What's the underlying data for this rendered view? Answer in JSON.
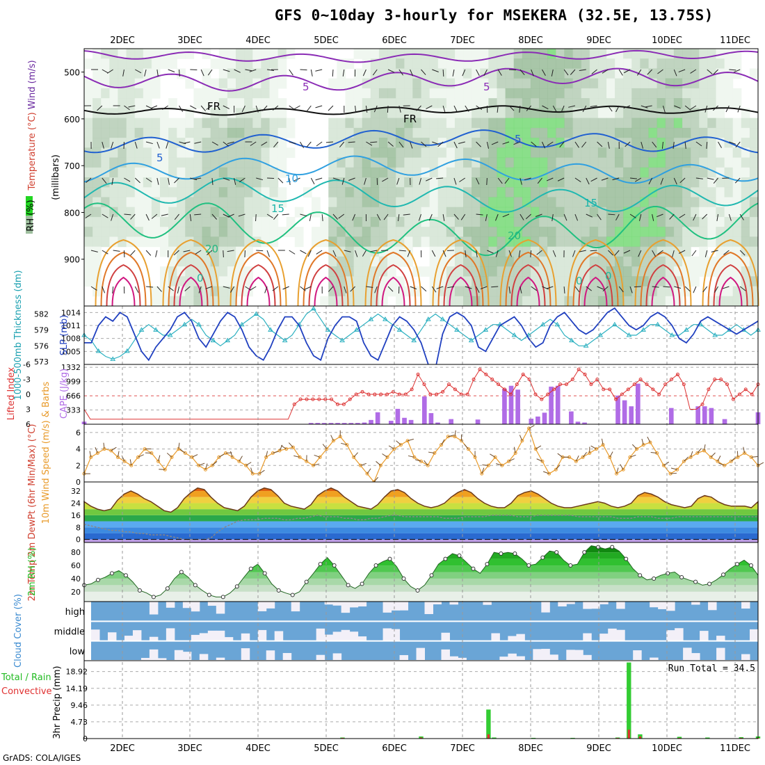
{
  "title": "GFS 0~10day 3-hourly for MSEKERA (32.5E, 13.75S)",
  "credit": "GrADS: COLA/IGES",
  "colors": {
    "temp_contour": "#1ab3a8",
    "wind_contour": "#8a2bb5",
    "rh_green": "#22d622",
    "slp": "#2040c0",
    "thickness": "#2bb0c0",
    "cape": "#b06ce6",
    "lifted": "#dd3333",
    "wind10": "#e89a2a",
    "rh2m": "#22bb22",
    "cloud": "#6aa5d6",
    "cloud_clear": "#f3f0f8",
    "precip_total": "#33cc33",
    "precip_conv": "#e03030"
  },
  "chart_data": [
    {
      "type": "heatmap",
      "panel": "upper_air",
      "ylabel_parts": [
        "RH (%)",
        "Temperature (°C)",
        "Wind (m/s)"
      ],
      "ylabel_units": "(millibars)",
      "y_ticks": [
        500,
        600,
        700,
        800,
        900
      ],
      "ylim": [
        1000,
        450
      ],
      "contour_labels": [
        "5",
        "5",
        "FR",
        "FR",
        "5",
        "5",
        "10",
        "15",
        "15",
        "20",
        "20",
        "0",
        "0",
        "0"
      ],
      "x_dates": [
        "2DEC",
        "3DEC",
        "4DEC",
        "5DEC",
        "6DEC",
        "7DEC",
        "8DEC",
        "9DEC",
        "10DEC",
        "11DEC"
      ]
    },
    {
      "type": "line",
      "panel": "slp_thickness",
      "ylabel": "SLP (mb)",
      "ylabel2": "1000-500mb Thickness (dm)",
      "slp_ticks": [
        1005,
        1008,
        1011,
        1014
      ],
      "thick_ticks": [
        573,
        576,
        579,
        582
      ],
      "slp_values": [
        1007,
        1007,
        1011,
        1013,
        1012,
        1014,
        1013,
        1009,
        1005,
        1003,
        1006,
        1008,
        1010,
        1013,
        1014,
        1012,
        1008,
        1006,
        1009,
        1012,
        1014,
        1013,
        1010,
        1006,
        1004,
        1003,
        1006,
        1010,
        1013,
        1013,
        1011,
        1007,
        1004,
        1003,
        1008,
        1011,
        1013,
        1013,
        1012,
        1007,
        1004,
        1003,
        1007,
        1011,
        1013,
        1012,
        1010,
        1007,
        1002,
        1001,
        1009,
        1013,
        1014,
        1013,
        1011,
        1006,
        1005,
        1008,
        1011,
        1012,
        1013,
        1011,
        1008,
        1006,
        1007,
        1011,
        1013,
        1014,
        1012,
        1010,
        1009,
        1010,
        1012,
        1014,
        1015,
        1013,
        1011,
        1010,
        1011,
        1013,
        1014,
        1013,
        1011,
        1008,
        1007,
        1009,
        1012,
        1013,
        1012,
        1011,
        1010,
        1009,
        1010,
        1011,
        1012
      ],
      "thick_values": [
        578,
        577,
        575,
        574,
        573.5,
        574,
        575,
        577,
        579,
        580,
        579,
        578,
        578,
        579,
        580,
        581,
        580,
        578,
        577,
        576,
        577,
        578,
        580,
        581,
        582,
        581,
        579,
        578,
        577,
        578,
        580,
        582,
        583,
        581,
        579,
        578,
        577,
        578,
        579,
        580,
        581,
        582,
        581,
        580,
        579,
        578,
        577,
        579,
        581,
        582,
        581,
        580,
        579,
        578,
        577,
        578,
        579,
        580,
        580,
        579,
        578,
        577,
        578,
        579,
        580,
        581,
        580,
        578,
        577,
        576,
        576,
        577,
        578,
        579,
        580,
        579,
        578,
        578,
        579,
        580,
        580,
        579,
        578,
        578,
        579,
        580,
        580,
        579,
        578,
        578,
        579,
        580,
        579,
        578,
        579
      ],
      "slp_ylim": [
        1002,
        1015.5
      ],
      "thick_ylim": [
        572.5,
        583.5
      ]
    },
    {
      "type": "bar",
      "panel": "cape_lifted",
      "ylabel": "CAPE (J/kg)",
      "ylabel2": "Lifted Index",
      "cape_ticks": [
        333,
        666,
        999,
        1332
      ],
      "li_ticks": [
        6,
        3,
        0,
        -3,
        -6
      ],
      "cape_values": [
        60,
        0,
        0,
        0,
        0,
        0,
        0,
        0,
        0,
        0,
        0,
        0,
        0,
        0,
        0,
        0,
        0,
        0,
        0,
        0,
        0,
        0,
        0,
        0,
        0,
        0,
        0,
        0,
        0,
        0,
        0,
        0,
        0,
        0,
        30,
        30,
        30,
        30,
        30,
        30,
        30,
        30,
        40,
        100,
        280,
        0,
        80,
        360,
        150,
        100,
        0,
        650,
        260,
        40,
        0,
        120,
        0,
        0,
        0,
        110,
        0,
        0,
        0,
        830,
        900,
        810,
        0,
        130,
        180,
        270,
        880,
        900,
        0,
        300,
        60,
        40,
        0,
        0,
        0,
        0,
        670,
        560,
        420,
        950,
        0,
        0,
        0,
        0,
        380,
        0,
        0,
        0,
        420,
        420,
        380,
        0,
        120,
        0,
        0,
        0,
        0,
        280
      ],
      "li_values": [
        3,
        5,
        5,
        5,
        5,
        5,
        5,
        5,
        5,
        5,
        5,
        5,
        5,
        5,
        5,
        5,
        5,
        5,
        5,
        5,
        5,
        5,
        5,
        5,
        5,
        5,
        5,
        5,
        5,
        5,
        5,
        5,
        5,
        5,
        2,
        1,
        1,
        1,
        1,
        1,
        1,
        2,
        2,
        1,
        0,
        -0.5,
        0,
        0,
        0,
        0,
        -0.5,
        0,
        0,
        -1,
        -4,
        -2,
        0,
        0,
        -0.5,
        -2,
        -1,
        0,
        0,
        -3,
        -5,
        -4,
        -3,
        -2,
        -1,
        0,
        -2,
        -4,
        -3,
        0,
        1,
        0,
        -1,
        -2,
        -2,
        -3,
        -5,
        -4,
        -2,
        -3,
        -1,
        -1,
        1,
        0,
        -1,
        -2,
        -3,
        -2,
        -1,
        0,
        -2,
        -3,
        -4,
        -2,
        3,
        3,
        2,
        -1,
        -3,
        -3,
        -2,
        1,
        0,
        -1,
        0,
        -2
      ]
    },
    {
      "type": "line",
      "panel": "wind10m",
      "ylabel": "10m Wind Speed (m/s) & Barbs",
      "y_ticks": [
        0,
        2,
        4,
        6
      ],
      "ylim": [
        0,
        7
      ],
      "values": [
        1,
        3,
        3.5,
        4,
        3.8,
        3,
        2.5,
        2,
        3,
        4,
        3.5,
        2.5,
        1.5,
        3,
        4,
        3.5,
        3,
        2,
        1.5,
        2,
        3,
        3.5,
        3,
        2.5,
        2,
        1,
        1,
        3,
        3.5,
        3.8,
        4,
        4.2,
        3,
        2.5,
        2,
        3,
        4,
        5,
        5.5,
        4.5,
        3,
        2,
        1,
        0,
        2,
        3,
        4,
        4.5,
        5,
        3,
        2.5,
        2,
        3.5,
        4.5,
        5.5,
        5.5,
        5,
        4,
        3,
        1,
        2,
        3,
        2,
        2.5,
        3.5,
        5,
        6.5,
        4,
        2.5,
        1,
        1.5,
        3,
        3,
        2.5,
        3,
        3.5,
        4,
        4.5,
        3,
        1,
        1.5,
        3,
        4,
        4.5,
        4.8,
        3.5,
        2,
        1,
        1.5,
        2.5,
        3,
        3.5,
        3.8,
        3,
        2.5,
        2,
        2.5,
        3,
        3.5,
        3,
        2
      ]
    },
    {
      "type": "area",
      "panel": "temp2m",
      "ylabel": "2m Temp 2m DewPt (6hr Min/Max) (°C)",
      "y_ticks": [
        0,
        8,
        16,
        24,
        32
      ],
      "ylim": [
        -2,
        38
      ],
      "temp_values": [
        25,
        22,
        20,
        19,
        20,
        26,
        30,
        32,
        30,
        27,
        25,
        22,
        19,
        18,
        21,
        27,
        31,
        34,
        33,
        28,
        24,
        21,
        20,
        19,
        22,
        28,
        32,
        34,
        33,
        29,
        24,
        22,
        21,
        20,
        23,
        29,
        32,
        34,
        32,
        28,
        25,
        22,
        21,
        20,
        23,
        28,
        32,
        33,
        31,
        27,
        24,
        22,
        21,
        22,
        24,
        28,
        31,
        33,
        31,
        27,
        24,
        22,
        21,
        21,
        24,
        29,
        31,
        32,
        30,
        27,
        24,
        22,
        21,
        21,
        22,
        23,
        24,
        25,
        24,
        22,
        21,
        22,
        24,
        29,
        31,
        30,
        28,
        25,
        23,
        22,
        21,
        22,
        27,
        29,
        28,
        25,
        23,
        22,
        22,
        22,
        21,
        25
      ],
      "dew_values": [
        10,
        9,
        8,
        7,
        6,
        6,
        5,
        5,
        4,
        4,
        3,
        3,
        3,
        2,
        1,
        0,
        0,
        0,
        0,
        1,
        5,
        8,
        10,
        12,
        13,
        13,
        13,
        14,
        14,
        14,
        13,
        13,
        14,
        14,
        15,
        16,
        15,
        15,
        15,
        14,
        14,
        13,
        13,
        14,
        14,
        15,
        16,
        16,
        15,
        15,
        15,
        15,
        15,
        15,
        14,
        14,
        14,
        15,
        15,
        15,
        15,
        16,
        16,
        16,
        16,
        15,
        15,
        15,
        16,
        16,
        16,
        16,
        16,
        16,
        15,
        15,
        15,
        15,
        15,
        15,
        14,
        14,
        14,
        15,
        15,
        15,
        14,
        14,
        14,
        15,
        15,
        15,
        15,
        15,
        15,
        15,
        15,
        15,
        15,
        15,
        15,
        15
      ]
    },
    {
      "type": "area",
      "panel": "rh2m",
      "ylabel": "2m RH (%)",
      "y_ticks": [
        20,
        40,
        60,
        80
      ],
      "ylim": [
        5,
        95
      ],
      "values": [
        30,
        32,
        38,
        42,
        48,
        52,
        45,
        35,
        22,
        18,
        12,
        15,
        25,
        40,
        50,
        42,
        30,
        22,
        15,
        12,
        12,
        18,
        28,
        42,
        55,
        62,
        48,
        32,
        22,
        18,
        15,
        20,
        35,
        48,
        62,
        72,
        60,
        45,
        30,
        25,
        32,
        48,
        60,
        66,
        70,
        58,
        40,
        28,
        22,
        30,
        45,
        62,
        70,
        78,
        75,
        65,
        55,
        48,
        62,
        80,
        78,
        80,
        78,
        70,
        60,
        62,
        72,
        82,
        80,
        68,
        60,
        62,
        80,
        90,
        88,
        85,
        88,
        82,
        70,
        55,
        45,
        38,
        40,
        45,
        48,
        50,
        42,
        38,
        35,
        30,
        32,
        38,
        46,
        55,
        62,
        68,
        60,
        45
      ]
    },
    {
      "type": "heatmap",
      "panel": "cloud_cover",
      "ylabel": "Cloud Cover (%)",
      "rows": [
        "high",
        "middle",
        "low"
      ]
    },
    {
      "type": "bar",
      "panel": "precip",
      "ylabel": "3hr Precip (mm)",
      "legend": [
        "Total",
        "Rain",
        "Convective"
      ],
      "legend_text": "Total / Rain",
      "legend_text2": "Convective",
      "y_ticks": [
        0,
        4.73,
        9.46,
        14.19,
        18.92
      ],
      "ylim": [
        0,
        22
      ],
      "run_total": "Run Total = 34.5",
      "total_values": [
        0,
        0,
        0,
        0,
        0,
        0,
        0,
        0,
        0,
        0,
        0,
        0,
        0,
        0,
        0,
        0,
        0,
        0,
        0,
        0,
        0,
        0,
        0,
        0,
        0,
        0,
        0,
        0,
        0,
        0,
        0,
        0,
        0,
        0,
        0,
        0,
        0,
        0,
        0,
        0,
        0,
        0,
        0,
        0,
        0,
        0,
        0.3,
        0,
        0,
        0,
        0,
        0,
        0,
        0,
        0,
        0,
        0,
        0,
        0,
        0,
        0.6,
        0,
        0,
        0,
        0,
        0,
        0,
        0,
        0,
        0,
        0,
        0,
        8.2,
        0.3,
        0,
        0,
        0,
        0,
        0,
        0,
        0.2,
        0,
        0,
        0,
        0,
        0,
        0,
        0.2,
        0,
        0,
        0,
        0,
        0,
        0,
        0,
        0.3,
        0,
        21.5,
        0,
        1.2,
        0,
        0,
        0,
        0,
        0,
        0,
        0.5,
        0,
        0,
        0,
        0,
        0.3,
        0,
        0,
        0,
        0,
        0,
        0.4,
        0,
        0,
        0.6
      ],
      "conv_values": [
        0,
        0,
        0,
        0,
        0,
        0,
        0,
        0,
        0,
        0,
        0,
        0,
        0,
        0,
        0,
        0,
        0,
        0,
        0,
        0,
        0,
        0,
        0,
        0,
        0,
        0,
        0,
        0,
        0,
        0,
        0,
        0,
        0,
        0,
        0,
        0,
        0,
        0,
        0,
        0,
        0,
        0,
        0,
        0,
        0,
        0,
        0.2,
        0,
        0,
        0,
        0,
        0,
        0,
        0,
        0,
        0,
        0,
        0,
        0,
        0,
        0.3,
        0,
        0,
        0,
        0,
        0,
        0,
        0,
        0,
        0,
        0,
        0,
        1.2,
        0,
        0,
        0,
        0,
        0,
        0,
        0,
        0.1,
        0,
        0,
        0,
        0,
        0,
        0,
        0.1,
        0,
        0,
        0,
        0,
        0,
        0,
        0,
        0.2,
        0,
        2.5,
        0,
        0.6,
        0,
        0,
        0,
        0,
        0,
        0,
        0.2,
        0,
        0,
        0,
        0,
        0.1,
        0,
        0,
        0,
        0,
        0,
        0.2,
        0,
        0,
        0.2
      ]
    }
  ]
}
